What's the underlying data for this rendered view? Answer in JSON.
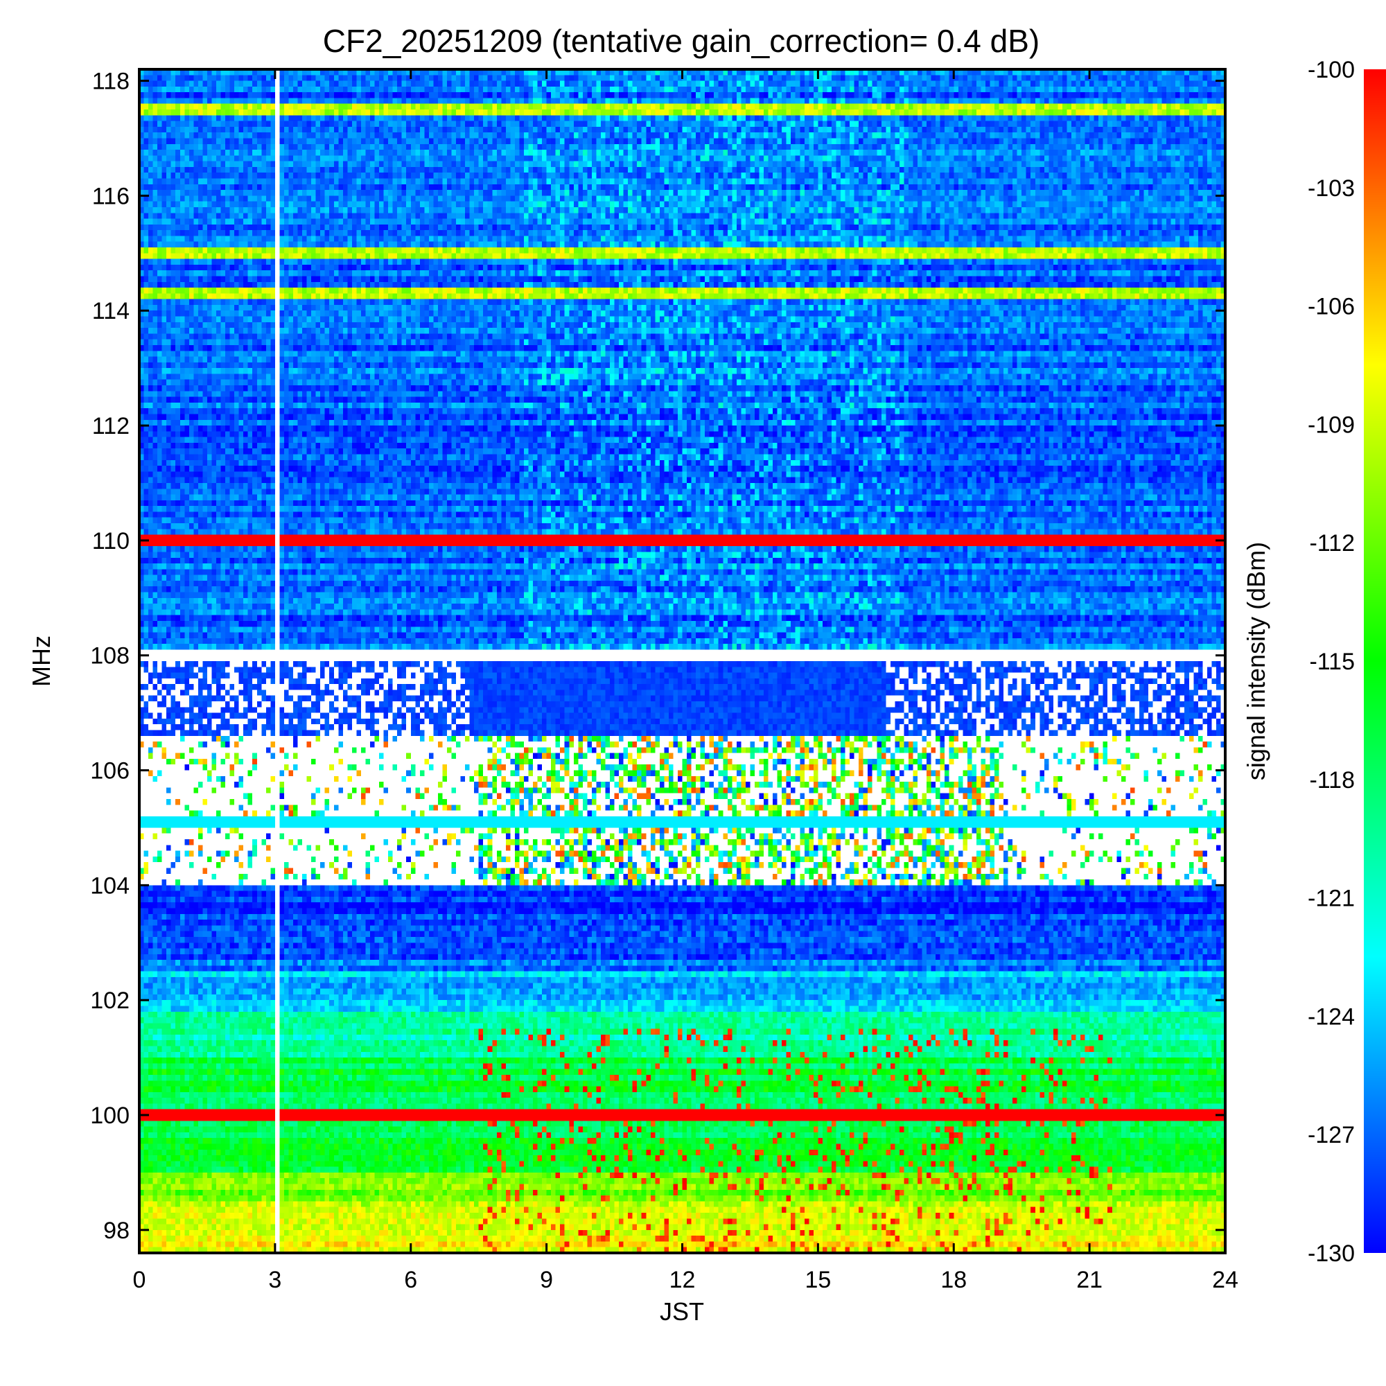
{
  "chart_data": {
    "type": "heatmap",
    "title": "CF2_20251209 (tentative gain_correction=  0.4 dB)",
    "xlabel": "JST",
    "ylabel": "MHz",
    "colorbar_label": "signal intensity (dBm)",
    "xlim": [
      0,
      24
    ],
    "ylim": [
      97.6,
      118.2
    ],
    "clim": [
      -130,
      -100
    ],
    "x_ticks": [
      0,
      3,
      6,
      9,
      12,
      15,
      18,
      21,
      24
    ],
    "x_tick_labels": [
      "0",
      "3",
      "6",
      "9",
      "12",
      "15",
      "18",
      "21",
      "24"
    ],
    "y_ticks": [
      98,
      100,
      102,
      104,
      106,
      108,
      110,
      112,
      114,
      116,
      118
    ],
    "y_tick_labels": [
      "98",
      "100",
      "102",
      "104",
      "106",
      "108",
      "110",
      "112",
      "114",
      "116",
      "118"
    ],
    "colorbar_ticks": [
      -100,
      -103,
      -106,
      -109,
      -112,
      -115,
      -118,
      -121,
      -124,
      -127,
      -130
    ],
    "colorbar_tick_labels": [
      "-100",
      "-103",
      "-106",
      "-109",
      "-112",
      "-115",
      "-118",
      "-121",
      "-124",
      "-127",
      "-130"
    ],
    "colormap": [
      "#0000ff",
      "#0080ff",
      "#00ffff",
      "#00ff80",
      "#00ff00",
      "#80ff00",
      "#ffff00",
      "#ff8000",
      "#ff0000"
    ],
    "gap_time_hours": 3.05,
    "strong_carriers_mhz": [
      110.0,
      100.0
    ],
    "moderate_carriers_mhz": [
      117.5,
      115.0,
      114.3,
      98.4
    ],
    "sparse_band_mhz": [
      104.0,
      106.6
    ],
    "uniform_floor_dbm": [
      {
        "from": 108.1,
        "to": 118.2,
        "dbm": -127
      },
      {
        "from": 103.5,
        "to": 104.0,
        "dbm": -129
      },
      {
        "from": 102.5,
        "to": 103.5,
        "dbm": -127
      },
      {
        "from": 101.8,
        "to": 102.5,
        "dbm": -124
      },
      {
        "from": 101.0,
        "to": 101.8,
        "dbm": -120
      },
      {
        "from": 99.0,
        "to": 101.0,
        "dbm": -117
      },
      {
        "from": 98.5,
        "to": 99.0,
        "dbm": -112
      },
      {
        "from": 97.6,
        "to": 98.5,
        "dbm": -108
      }
    ]
  }
}
